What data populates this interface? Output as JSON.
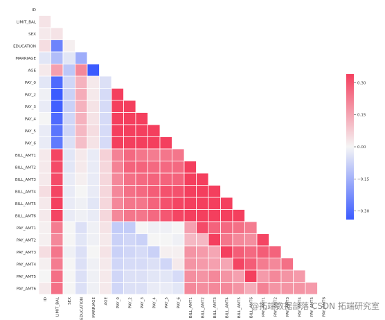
{
  "chart_data": {
    "type": "heatmap",
    "variables": [
      "ID",
      "LIMIT_BAL",
      "SEX",
      "EDUCATION",
      "MARRIAGE",
      "AGE",
      "PAY_0",
      "PAY_2",
      "PAY_3",
      "PAY_4",
      "PAY_5",
      "PAY_6",
      "BILL_AMT1",
      "BILL_AMT2",
      "BILL_AMT3",
      "BILL_AMT4",
      "BILL_AMT5",
      "BILL_AMT6",
      "PAY_AMT1",
      "PAY_AMT2",
      "PAY_AMT3",
      "PAY_AMT4",
      "PAY_AMT5",
      "PAY_AMT6"
    ],
    "x_tick_labels": [
      "ID",
      "LIMIT_BAL",
      "SEX",
      "EDUCATION",
      "MARRIAGE",
      "AGE",
      "PAY_0",
      "PAY_2",
      "PAY_3",
      "PAY_4",
      "PAY_5",
      "PAY_6",
      "BILL_AMT1",
      "BILL_AMT2",
      "BILL_AMT3",
      "BILL_AMT4",
      "BILL_AMT5",
      "BILL_AMT6",
      "PAY_AMT1",
      "PAY_AMT2",
      "PAY_AMT3",
      "PAY_AMT4",
      "PAY_AMT5",
      "PAY_AMT6"
    ],
    "y_tick_labels": [
      "ID",
      "LIMIT_BAL",
      "SEX",
      "EDUCATION",
      "MARRIAGE",
      "AGE",
      "PAY_0",
      "PAY_2",
      "PAY_3",
      "PAY_4",
      "PAY_5",
      "PAY_6",
      "BILL_AMT1",
      "BILL_AMT2",
      "BILL_AMT3",
      "BILL_AMT4",
      "BILL_AMT5",
      "BILL_AMT6",
      "PAY_AMT1",
      "PAY_AMT2",
      "PAY_AMT3",
      "PAY_AMT4",
      "PAY_AMT5",
      "PAY_AMT6"
    ],
    "mask": "upper-triangle-including-diagonal",
    "colormap": {
      "negative": "#3b5bff",
      "neutral": "#f5f5f5",
      "positive": "#f43f5e"
    },
    "vmin": -0.3,
    "vmax": 0.3,
    "colorbar_ticks": [
      0.3,
      0.15,
      0.0,
      -0.15,
      -0.3
    ],
    "colorbar_tick_labels": [
      "0.30",
      "0.15",
      "0.00",
      "−0.15",
      "−0.30"
    ],
    "title": "",
    "xlabel": "",
    "ylabel": "",
    "rows": [
      [],
      [
        0.03
      ],
      [
        0.02,
        0.03
      ],
      [
        0.04,
        -0.22,
        0.01
      ],
      [
        -0.03,
        -0.11,
        -0.03,
        -0.14
      ],
      [
        0.02,
        0.14,
        -0.09,
        0.18,
        -0.41
      ],
      [
        -0.03,
        -0.27,
        -0.06,
        0.11,
        0.02,
        -0.04
      ],
      [
        -0.01,
        -0.3,
        -0.07,
        0.12,
        0.02,
        -0.05,
        0.67
      ],
      [
        -0.02,
        -0.29,
        -0.07,
        0.11,
        0.03,
        -0.05,
        0.57,
        0.77
      ],
      [
        -0.0,
        -0.27,
        -0.06,
        0.11,
        0.03,
        -0.05,
        0.54,
        0.66,
        0.78
      ],
      [
        -0.02,
        -0.25,
        -0.06,
        0.1,
        0.04,
        -0.05,
        0.51,
        0.62,
        0.69,
        0.82
      ],
      [
        -0.02,
        -0.24,
        -0.04,
        0.09,
        0.03,
        -0.05,
        0.47,
        0.58,
        0.63,
        0.72,
        0.82
      ],
      [
        0.02,
        0.29,
        -0.03,
        0.02,
        -0.02,
        0.06,
        0.19,
        0.23,
        0.21,
        0.2,
        0.21,
        0.21
      ],
      [
        0.02,
        0.28,
        -0.03,
        0.02,
        -0.02,
        0.05,
        0.19,
        0.24,
        0.24,
        0.23,
        0.23,
        0.23,
        0.95
      ],
      [
        0.02,
        0.28,
        -0.02,
        0.01,
        -0.02,
        0.05,
        0.18,
        0.22,
        0.23,
        0.24,
        0.24,
        0.24,
        0.89,
        0.93
      ],
      [
        0.04,
        0.29,
        -0.02,
        -0.0,
        -0.02,
        0.05,
        0.18,
        0.22,
        0.23,
        0.25,
        0.27,
        0.27,
        0.86,
        0.89,
        0.92
      ],
      [
        0.02,
        0.3,
        -0.02,
        -0.01,
        -0.03,
        0.05,
        0.18,
        0.21,
        0.21,
        0.24,
        0.27,
        0.29,
        0.83,
        0.86,
        0.88,
        0.94
      ],
      [
        0.02,
        0.29,
        -0.02,
        -0.01,
        -0.02,
        0.05,
        0.18,
        0.21,
        0.21,
        0.23,
        0.26,
        0.29,
        0.8,
        0.83,
        0.85,
        0.9,
        0.95
      ],
      [
        0.01,
        0.2,
        -0.0,
        -0.04,
        -0.01,
        0.03,
        -0.08,
        -0.08,
        0.0,
        -0.01,
        -0.01,
        -0.0,
        0.14,
        0.28,
        0.24,
        0.23,
        0.22,
        0.2
      ],
      [
        0.01,
        0.18,
        -0.0,
        -0.03,
        -0.01,
        0.02,
        -0.07,
        -0.06,
        -0.07,
        -0.0,
        -0.0,
        -0.01,
        0.1,
        0.1,
        0.32,
        0.21,
        0.18,
        0.17,
        0.29
      ],
      [
        0.04,
        0.21,
        -0.01,
        -0.04,
        -0.0,
        0.03,
        -0.07,
        -0.06,
        -0.05,
        -0.07,
        0.01,
        0.01,
        0.16,
        0.15,
        0.13,
        0.3,
        0.25,
        0.23,
        0.25,
        0.24
      ],
      [
        0.01,
        0.2,
        -0.0,
        -0.04,
        -0.01,
        0.02,
        -0.06,
        -0.05,
        -0.05,
        -0.04,
        -0.06,
        0.02,
        0.16,
        0.15,
        0.14,
        0.13,
        0.29,
        0.25,
        0.2,
        0.18,
        0.22
      ],
      [
        0.0,
        0.22,
        -0.0,
        -0.04,
        -0.01,
        0.02,
        -0.06,
        -0.04,
        -0.04,
        -0.03,
        -0.03,
        -0.05,
        0.17,
        0.16,
        0.18,
        0.16,
        0.14,
        0.31,
        0.15,
        0.18,
        0.16,
        0.15
      ],
      [
        0.02,
        0.22,
        -0.0,
        -0.04,
        -0.01,
        0.02,
        -0.06,
        -0.04,
        -0.04,
        -0.02,
        -0.02,
        -0.03,
        0.18,
        0.17,
        0.18,
        0.18,
        0.16,
        0.12,
        0.19,
        0.16,
        0.16,
        0.16,
        0.15
      ]
    ]
  },
  "watermark": {
    "left": "CSDN",
    "right": "拓端研究室",
    "mark": "@拓端数据部落"
  }
}
